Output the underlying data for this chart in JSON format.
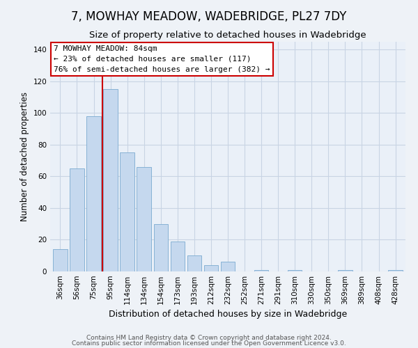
{
  "title": "7, MOWHAY MEADOW, WADEBRIDGE, PL27 7DY",
  "subtitle": "Size of property relative to detached houses in Wadebridge",
  "xlabel": "Distribution of detached houses by size in Wadebridge",
  "ylabel": "Number of detached properties",
  "categories": [
    "36sqm",
    "56sqm",
    "75sqm",
    "95sqm",
    "114sqm",
    "134sqm",
    "154sqm",
    "173sqm",
    "193sqm",
    "212sqm",
    "232sqm",
    "252sqm",
    "271sqm",
    "291sqm",
    "310sqm",
    "330sqm",
    "350sqm",
    "369sqm",
    "389sqm",
    "408sqm",
    "428sqm"
  ],
  "values": [
    14,
    65,
    98,
    115,
    75,
    66,
    30,
    19,
    10,
    4,
    6,
    0,
    1,
    0,
    1,
    0,
    0,
    1,
    0,
    0,
    1
  ],
  "bar_color": "#c5d8ee",
  "bar_edge_color": "#7aaad0",
  "vline_x": 2.5,
  "vline_color": "#cc0000",
  "ylim": [
    0,
    145
  ],
  "yticks": [
    0,
    20,
    40,
    60,
    80,
    100,
    120,
    140
  ],
  "annotation_title": "7 MOWHAY MEADOW: 84sqm",
  "annotation_line1": "← 23% of detached houses are smaller (117)",
  "annotation_line2": "76% of semi-detached houses are larger (382) →",
  "annotation_box_color": "#ffffff",
  "annotation_box_edge": "#cc0000",
  "footer1": "Contains HM Land Registry data © Crown copyright and database right 2024.",
  "footer2": "Contains public sector information licensed under the Open Government Licence v3.0.",
  "background_color": "#eef2f7",
  "plot_bg_color": "#eaf0f8",
  "title_fontsize": 12,
  "subtitle_fontsize": 9.5,
  "xlabel_fontsize": 9,
  "ylabel_fontsize": 8.5,
  "tick_fontsize": 7.5,
  "annotation_title_fontsize": 8.5,
  "annotation_text_fontsize": 8,
  "footer_fontsize": 6.5,
  "grid_color": "#c8d4e4"
}
